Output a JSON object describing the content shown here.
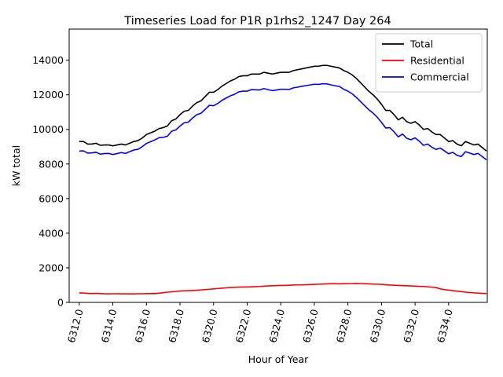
{
  "chart_data": {
    "type": "line",
    "title": "Timeseries Load for P1R p1rhs2_1247  Day 264",
    "xlabel": "Hour of Year",
    "ylabel": "kW total",
    "xlim": [
      6311.4,
      6336.3
    ],
    "ylim": [
      0,
      15800
    ],
    "x_start": 6312.0,
    "x_step": 0.25,
    "x_ticks": [
      6312,
      6314,
      6316,
      6318,
      6320,
      6322,
      6324,
      6326,
      6328,
      6330,
      6332,
      6334
    ],
    "x_tick_labels": [
      "6312.0",
      "6314.0",
      "6316.0",
      "6318.0",
      "6320.0",
      "6322.0",
      "6324.0",
      "6326.0",
      "6328.0",
      "6330.0",
      "6332.0",
      "6334.0"
    ],
    "y_ticks": [
      0,
      2000,
      4000,
      6000,
      8000,
      10000,
      12000,
      14000
    ],
    "y_tick_labels": [
      "0",
      "2000",
      "4000",
      "6000",
      "8000",
      "10000",
      "12000",
      "14000"
    ],
    "grid": false,
    "legend_position": "top-right",
    "series": [
      {
        "name": "Total",
        "color": "#000000",
        "values": [
          9300,
          9300,
          9150,
          9150,
          9200,
          9080,
          9100,
          9100,
          9050,
          9100,
          9150,
          9100,
          9200,
          9300,
          9350,
          9500,
          9700,
          9800,
          9900,
          10050,
          10100,
          10200,
          10500,
          10600,
          10850,
          11050,
          11100,
          11350,
          11550,
          11650,
          11900,
          12150,
          12150,
          12300,
          12500,
          12650,
          12800,
          12900,
          13050,
          13100,
          13100,
          13200,
          13200,
          13200,
          13300,
          13250,
          13200,
          13250,
          13300,
          13300,
          13300,
          13400,
          13450,
          13500,
          13550,
          13600,
          13650,
          13650,
          13700,
          13700,
          13650,
          13600,
          13550,
          13400,
          13300,
          13150,
          12950,
          12700,
          12450,
          12200,
          12000,
          11750,
          11450,
          11100,
          11100,
          10850,
          10550,
          10700,
          10450,
          10350,
          10450,
          10250,
          10000,
          10050,
          9850,
          9700,
          9700,
          9500,
          9300,
          9350,
          9150,
          9050,
          9300,
          9200,
          9100,
          9150,
          8950,
          8750
        ]
      },
      {
        "name": "Residential",
        "color": "#ff0000",
        "values": [
          550,
          540,
          520,
          510,
          520,
          510,
          500,
          490,
          500,
          500,
          490,
          500,
          490,
          490,
          500,
          500,
          510,
          510,
          510,
          530,
          560,
          590,
          610,
          630,
          660,
          670,
          680,
          690,
          700,
          720,
          740,
          760,
          780,
          800,
          820,
          840,
          860,
          870,
          880,
          890,
          890,
          900,
          910,
          920,
          940,
          950,
          960,
          970,
          980,
          980,
          990,
          1000,
          1010,
          1010,
          1020,
          1030,
          1040,
          1050,
          1060,
          1070,
          1080,
          1080,
          1070,
          1080,
          1090,
          1090,
          1100,
          1090,
          1080,
          1070,
          1060,
          1050,
          1040,
          1020,
          1000,
          990,
          980,
          970,
          960,
          950,
          940,
          930,
          920,
          900,
          880,
          860,
          780,
          740,
          710,
          680,
          650,
          620,
          590,
          570,
          550,
          540,
          520,
          510
        ]
      },
      {
        "name": "Commercial",
        "color": "#0000ff",
        "values": [
          8750,
          8760,
          8630,
          8640,
          8680,
          8570,
          8600,
          8610,
          8550,
          8600,
          8660,
          8610,
          8710,
          8810,
          8850,
          9000,
          9190,
          9290,
          9390,
          9520,
          9540,
          9610,
          9890,
          9970,
          10190,
          10380,
          10420,
          10660,
          10850,
          10930,
          11160,
          11390,
          11370,
          11500,
          11680,
          11810,
          11940,
          12030,
          12170,
          12210,
          12210,
          12300,
          12290,
          12280,
          12360,
          12300,
          12240,
          12280,
          12320,
          12320,
          12310,
          12400,
          12440,
          12490,
          12530,
          12570,
          12610,
          12600,
          12640,
          12630,
          12570,
          12520,
          12480,
          12320,
          12210,
          12060,
          11850,
          11610,
          11370,
          11130,
          10940,
          10700,
          10410,
          10080,
          10100,
          9860,
          9570,
          9730,
          9490,
          9400,
          9510,
          9320,
          9080,
          9150,
          8970,
          8840,
          8920,
          8760,
          8590,
          8670,
          8500,
          8430,
          8710,
          8630,
          8550,
          8610,
          8430,
          8240
        ]
      }
    ]
  }
}
